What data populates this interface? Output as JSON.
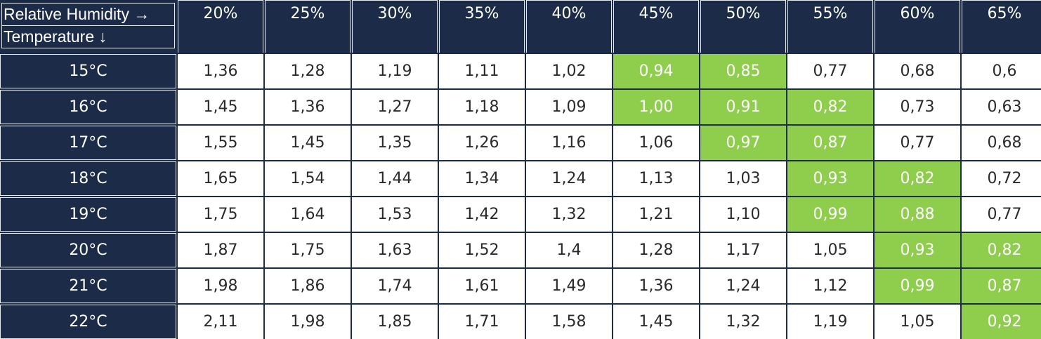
{
  "colors": {
    "header_bg": "#1c2b48",
    "cell_bg": "#ffffff",
    "highlight_bg": "#8fce4c",
    "highlight_text": "#ffffff",
    "cell_text": "#2a2a2a"
  },
  "chart_data": {
    "type": "table",
    "corner_labels": [
      "Relative Humidity →",
      "Temperature ↓"
    ],
    "columns": [
      "20%",
      "25%",
      "30%",
      "35%",
      "40%",
      "45%",
      "50%",
      "55%",
      "60%",
      "65%"
    ],
    "rows": [
      {
        "label": "15°C",
        "values": [
          "1,36",
          "1,28",
          "1,19",
          "1,11",
          "1,02",
          "0,94",
          "0,85",
          "0,77",
          "0,68",
          "0,6"
        ],
        "highlighted": [
          5,
          6
        ]
      },
      {
        "label": "16°C",
        "values": [
          "1,45",
          "1,36",
          "1,27",
          "1,18",
          "1,09",
          "1,00",
          "0,91",
          "0,82",
          "0,73",
          "0,63"
        ],
        "highlighted": [
          5,
          6,
          7
        ]
      },
      {
        "label": "17°C",
        "values": [
          "1,55",
          "1,45",
          "1,35",
          "1,26",
          "1,16",
          "1,06",
          "0,97",
          "0,87",
          "0,77",
          "0,68"
        ],
        "highlighted": [
          6,
          7
        ]
      },
      {
        "label": "18°C",
        "values": [
          "1,65",
          "1,54",
          "1,44",
          "1,34",
          "1,24",
          "1,13",
          "1,03",
          "0,93",
          "0,82",
          "0,72"
        ],
        "highlighted": [
          7,
          8
        ]
      },
      {
        "label": "19°C",
        "values": [
          "1,75",
          "1,64",
          "1,53",
          "1,42",
          "1,32",
          "1,21",
          "1,10",
          "0,99",
          "0,88",
          "0,77"
        ],
        "highlighted": [
          7,
          8
        ]
      },
      {
        "label": "20°C",
        "values": [
          "1,87",
          "1,75",
          "1,63",
          "1,52",
          "1,4",
          "1,28",
          "1,17",
          "1,05",
          "0,93",
          "0,82"
        ],
        "highlighted": [
          8,
          9
        ]
      },
      {
        "label": "21°C",
        "values": [
          "1,98",
          "1,86",
          "1,74",
          "1,61",
          "1,49",
          "1,36",
          "1,24",
          "1,12",
          "0,99",
          "0,87"
        ],
        "highlighted": [
          8,
          9
        ]
      },
      {
        "label": "22°C",
        "values": [
          "2,11",
          "1,98",
          "1,85",
          "1,71",
          "1,58",
          "1,45",
          "1,32",
          "1,19",
          "1,05",
          "0,92"
        ],
        "highlighted": [
          9
        ]
      }
    ]
  }
}
